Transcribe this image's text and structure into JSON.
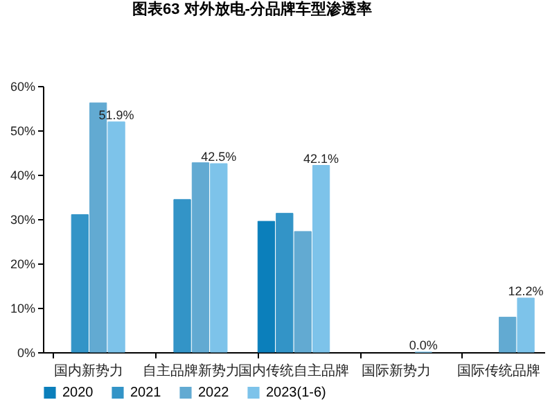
{
  "chart_data": {
    "type": "bar",
    "title": "图表63 对外放电-分品牌车型渗透率",
    "categories": [
      "国内新势力",
      "自主品牌新势力",
      "国内传统自主品牌",
      "国际新势力",
      "国际传统品牌"
    ],
    "series": [
      {
        "name": "2020",
        "color": "#0b7fbb",
        "values": [
          null,
          null,
          29.5,
          null,
          null
        ]
      },
      {
        "name": "2021",
        "color": "#3394c7",
        "values": [
          31.0,
          34.4,
          31.3,
          null,
          null
        ]
      },
      {
        "name": "2022",
        "color": "#62aad2",
        "values": [
          56.2,
          42.7,
          27.2,
          null,
          7.9
        ]
      },
      {
        "name": "2023(1-6)",
        "color": "#7dc3ea",
        "values": [
          51.9,
          42.5,
          42.1,
          0.0,
          12.2
        ],
        "value_labels": [
          "51.9%",
          "42.5%",
          "42.1%",
          "0.0%",
          "12.2%"
        ]
      }
    ],
    "ylim": [
      0,
      60
    ],
    "yticks": [
      {
        "value": 0,
        "label": "0%"
      },
      {
        "value": 10,
        "label": "10%"
      },
      {
        "value": 20,
        "label": "20%"
      },
      {
        "value": 30,
        "label": "30%"
      },
      {
        "value": 40,
        "label": "40%"
      },
      {
        "value": 50,
        "label": "50%"
      },
      {
        "value": 60,
        "label": "60%"
      }
    ],
    "grid": false,
    "legend": "bottom"
  }
}
